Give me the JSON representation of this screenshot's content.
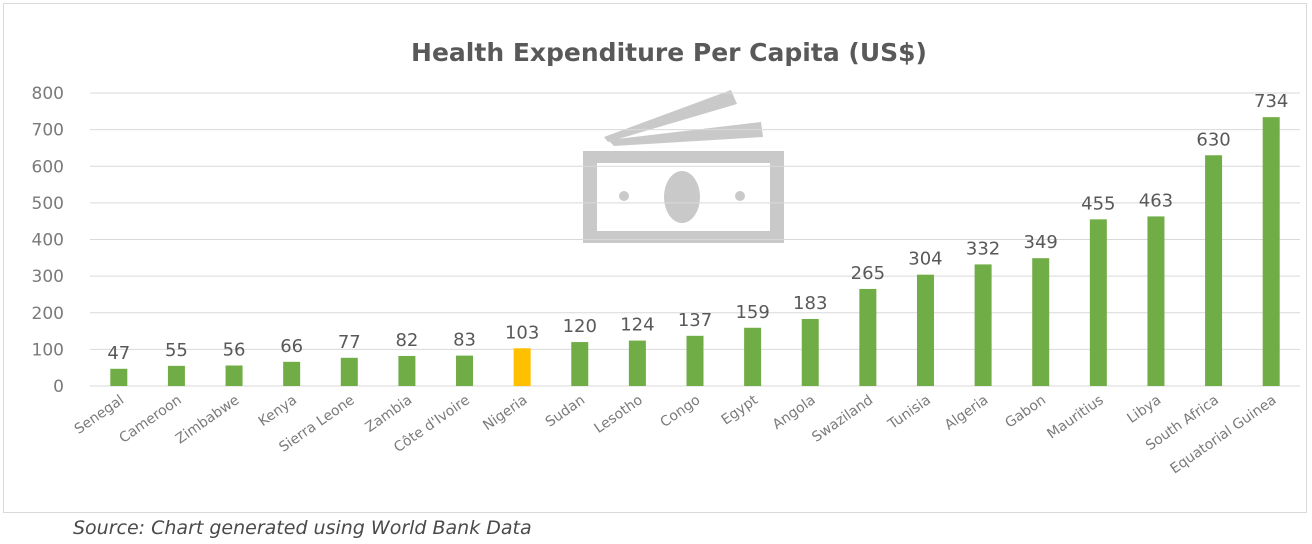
{
  "chart_data": {
    "type": "bar",
    "title": "Health Expenditure Per Capita (US$)",
    "xlabel": "",
    "ylabel": "",
    "ylim": [
      0,
      800
    ],
    "yticks": [
      0,
      100,
      200,
      300,
      400,
      500,
      600,
      700,
      800
    ],
    "grid": true,
    "legend": "none",
    "categories": [
      "Senegal",
      "Cameroon",
      "Zimbabwe",
      "Kenya",
      "Sierra Leone",
      "Zambia",
      "Côte d'Ivoire",
      "Nigeria",
      "Sudan",
      "Lesotho",
      "Congo",
      "Egypt",
      "Angola",
      "Swaziland",
      "Tunisia",
      "Algeria",
      "Gabon",
      "Mauritius",
      "Libya",
      "South Africa",
      "Equatorial Guinea"
    ],
    "values": [
      47,
      55,
      56,
      66,
      77,
      82,
      83,
      103,
      120,
      124,
      137,
      159,
      183,
      265,
      304,
      332,
      349,
      455,
      463,
      630,
      734
    ],
    "highlight_category": "Nigeria",
    "colors": {
      "bar": "#70ad47",
      "highlight": "#ffc000",
      "grid": "#d9d9d9",
      "money_icon": "#c9c9c9"
    }
  },
  "source_note": "Source: Chart generated using World Bank Data",
  "decoration": {
    "icon": "money-icon"
  }
}
